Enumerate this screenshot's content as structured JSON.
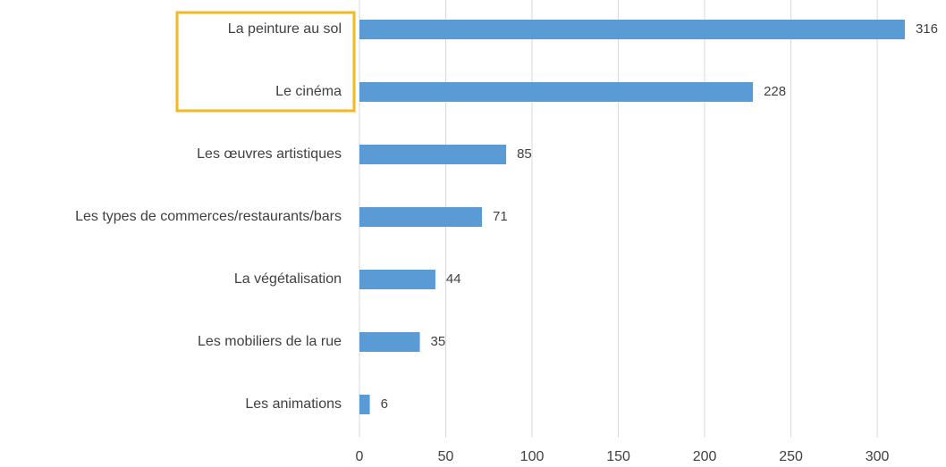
{
  "chart_data": {
    "type": "bar",
    "orientation": "horizontal",
    "categories": [
      "La peinture au sol",
      "Le cinéma",
      "Les œuvres artistiques",
      "Les types de commerces/restaurants/bars",
      "La végétalisation",
      "Les mobiliers de la rue",
      "Les animations"
    ],
    "values": [
      316,
      228,
      85,
      71,
      44,
      35,
      6
    ],
    "color": "#5b9bd5",
    "xlim": [
      0,
      330
    ],
    "xticks": [
      0,
      50,
      100,
      150,
      200,
      250,
      300
    ],
    "grid": true
  }
}
